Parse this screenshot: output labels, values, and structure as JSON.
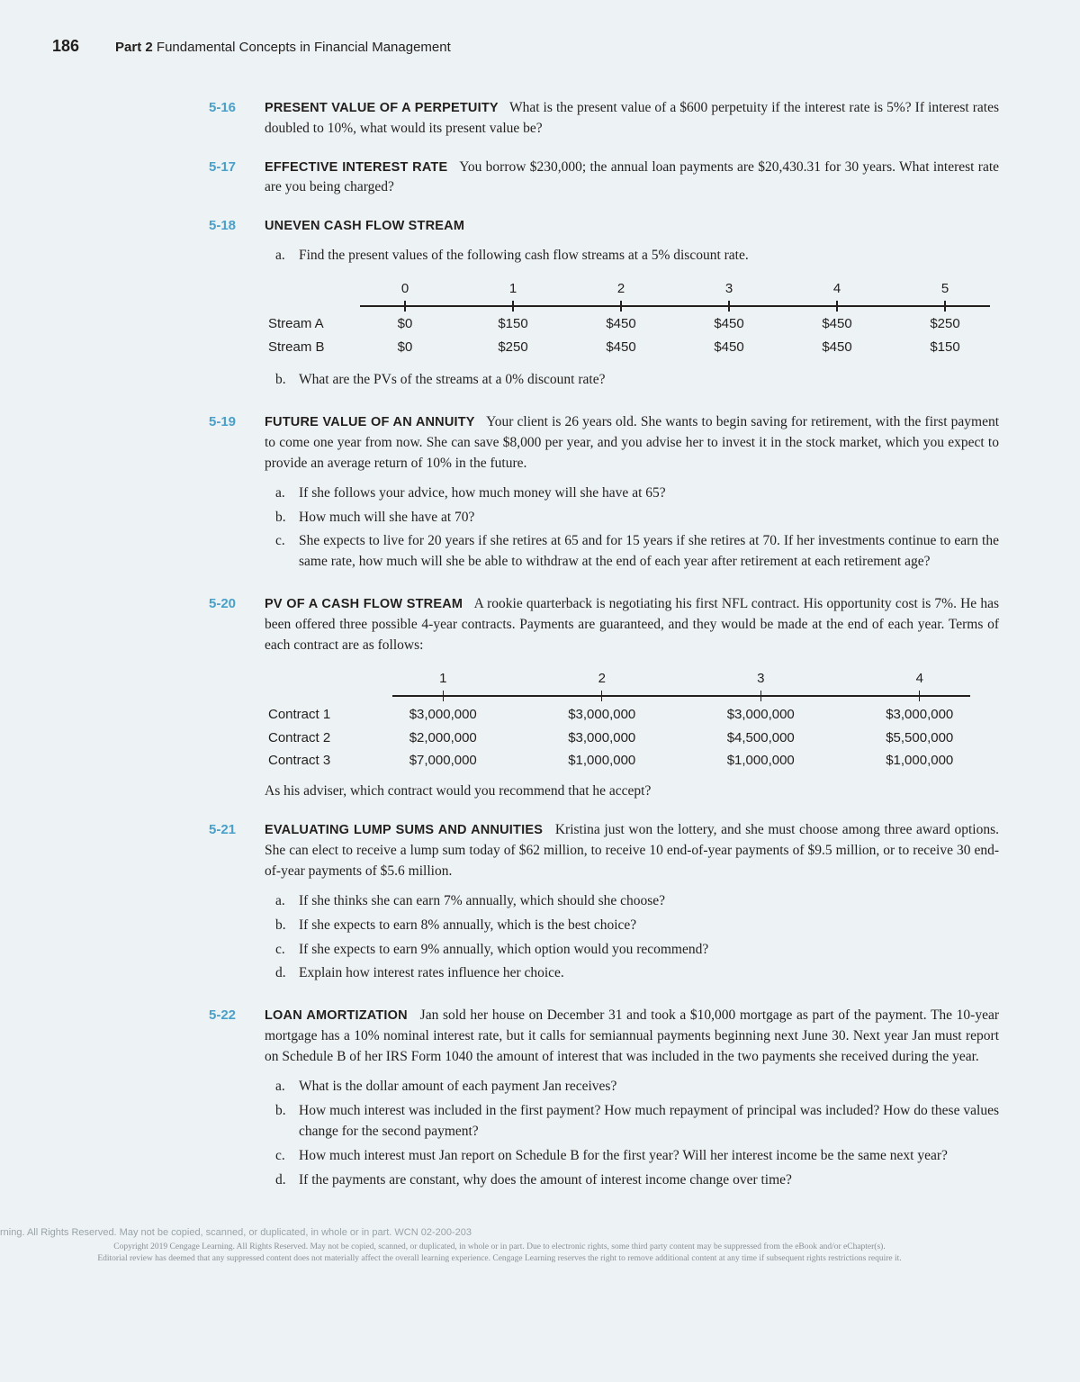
{
  "page_number": "186",
  "part_label_bold": "Part 2",
  "part_label_rest": "Fundamental Concepts in Financial Management",
  "accent_color": "#4aa0c8",
  "background_color": "#edf2f5",
  "text_color": "#221f1d",
  "q516": {
    "num": "5-16",
    "title": "PRESENT VALUE OF A PERPETUITY",
    "text": "What is the present value of a $600 perpetuity if the interest rate is 5%? If interest rates doubled to 10%, what would its present value be?"
  },
  "q517": {
    "num": "5-17",
    "title": "EFFECTIVE INTEREST RATE",
    "text": "You borrow $230,000; the annual loan payments are $20,430.31 for 30 years. What interest rate are you being charged?"
  },
  "q518": {
    "num": "5-18",
    "title": "UNEVEN CASH FLOW STREAM",
    "a": "Find the present values of the following cash flow streams at a 5% discount rate.",
    "table": {
      "periods": [
        "0",
        "1",
        "2",
        "3",
        "4",
        "5"
      ],
      "rows": [
        {
          "label": "Stream A",
          "vals": [
            "$0",
            "$150",
            "$450",
            "$450",
            "$450",
            "$250"
          ]
        },
        {
          "label": "Stream B",
          "vals": [
            "$0",
            "$250",
            "$450",
            "$450",
            "$450",
            "$150"
          ]
        }
      ]
    },
    "b": "What are the PVs of the streams at a 0% discount rate?"
  },
  "q519": {
    "num": "5-19",
    "title": "FUTURE VALUE OF AN ANNUITY",
    "text": "Your client is 26 years old. She wants to begin saving for retirement, with the first payment to come one year from now. She can save $8,000 per year, and you advise her to invest it in the stock market, which you expect to provide an average return of 10% in the future.",
    "a": "If she follows your advice, how much money will she have at 65?",
    "b": "How much will she have at 70?",
    "c": "She expects to live for 20 years if she retires at 65 and for 15 years if she retires at 70. If her investments continue to earn the same rate, how much will she be able to withdraw at the end of each year after retirement at each retirement age?"
  },
  "q520": {
    "num": "5-20",
    "title": "PV OF A CASH FLOW STREAM",
    "text": "A rookie quarterback is negotiating his first NFL contract. His opportunity cost is 7%. He has been offered three possible 4-year contracts. Payments are guaranteed, and they would be made at the end of each year. Terms of each contract are as follows:",
    "table": {
      "periods": [
        "1",
        "2",
        "3",
        "4"
      ],
      "rows": [
        {
          "label": "Contract 1",
          "vals": [
            "$3,000,000",
            "$3,000,000",
            "$3,000,000",
            "$3,000,000"
          ]
        },
        {
          "label": "Contract 2",
          "vals": [
            "$2,000,000",
            "$3,000,000",
            "$4,500,000",
            "$5,500,000"
          ]
        },
        {
          "label": "Contract 3",
          "vals": [
            "$7,000,000",
            "$1,000,000",
            "$1,000,000",
            "$1,000,000"
          ]
        }
      ]
    },
    "after": "As his adviser, which contract would you recommend that he accept?"
  },
  "q521": {
    "num": "5-21",
    "title": "EVALUATING LUMP SUMS AND ANNUITIES",
    "text": "Kristina just won the lottery, and she must choose among three award options. She can elect to receive a lump sum today of $62 million, to receive 10 end-of-year payments of $9.5 million, or to receive 30 end-of-year payments of $5.6 million.",
    "a": "If she thinks she can earn 7% annually, which should she choose?",
    "b": "If she expects to earn 8% annually, which is the best choice?",
    "c": "If she expects to earn 9% annually, which option would you recommend?",
    "d": "Explain how interest rates influence her choice."
  },
  "q522": {
    "num": "5-22",
    "title": "LOAN AMORTIZATION",
    "text": "Jan sold her house on December 31 and took a $10,000 mortgage as part of the payment. The 10-year mortgage has a 10% nominal interest rate, but it calls for semiannual payments beginning next June 30. Next year Jan must report on Schedule B of her IRS Form 1040 the amount of interest that was included in the two payments she received during the year.",
    "a": "What is the dollar amount of each payment Jan receives?",
    "b": "How much interest was included in the first payment? How much repayment of principal was included? How do these values change for the second payment?",
    "c": "How much interest must Jan report on Schedule B for the first year? Will her interest income be the same next year?",
    "d": "If the payments are constant, why does the amount of interest income change over time?"
  },
  "footer1": "rning. All Rights Reserved. May not be copied, scanned, or duplicated, in whole or in part.  WCN 02-200-203",
  "footer2a": "Copyright 2019 Cengage Learning. All Rights Reserved. May not be copied, scanned, or duplicated, in whole or in part. Due to electronic rights, some third party content may be suppressed from the eBook and/or eChapter(s).",
  "footer2b": "Editorial review has deemed that any suppressed content does not materially affect the overall learning experience. Cengage Learning reserves the right to remove additional content at any time if subsequent rights restrictions require it."
}
